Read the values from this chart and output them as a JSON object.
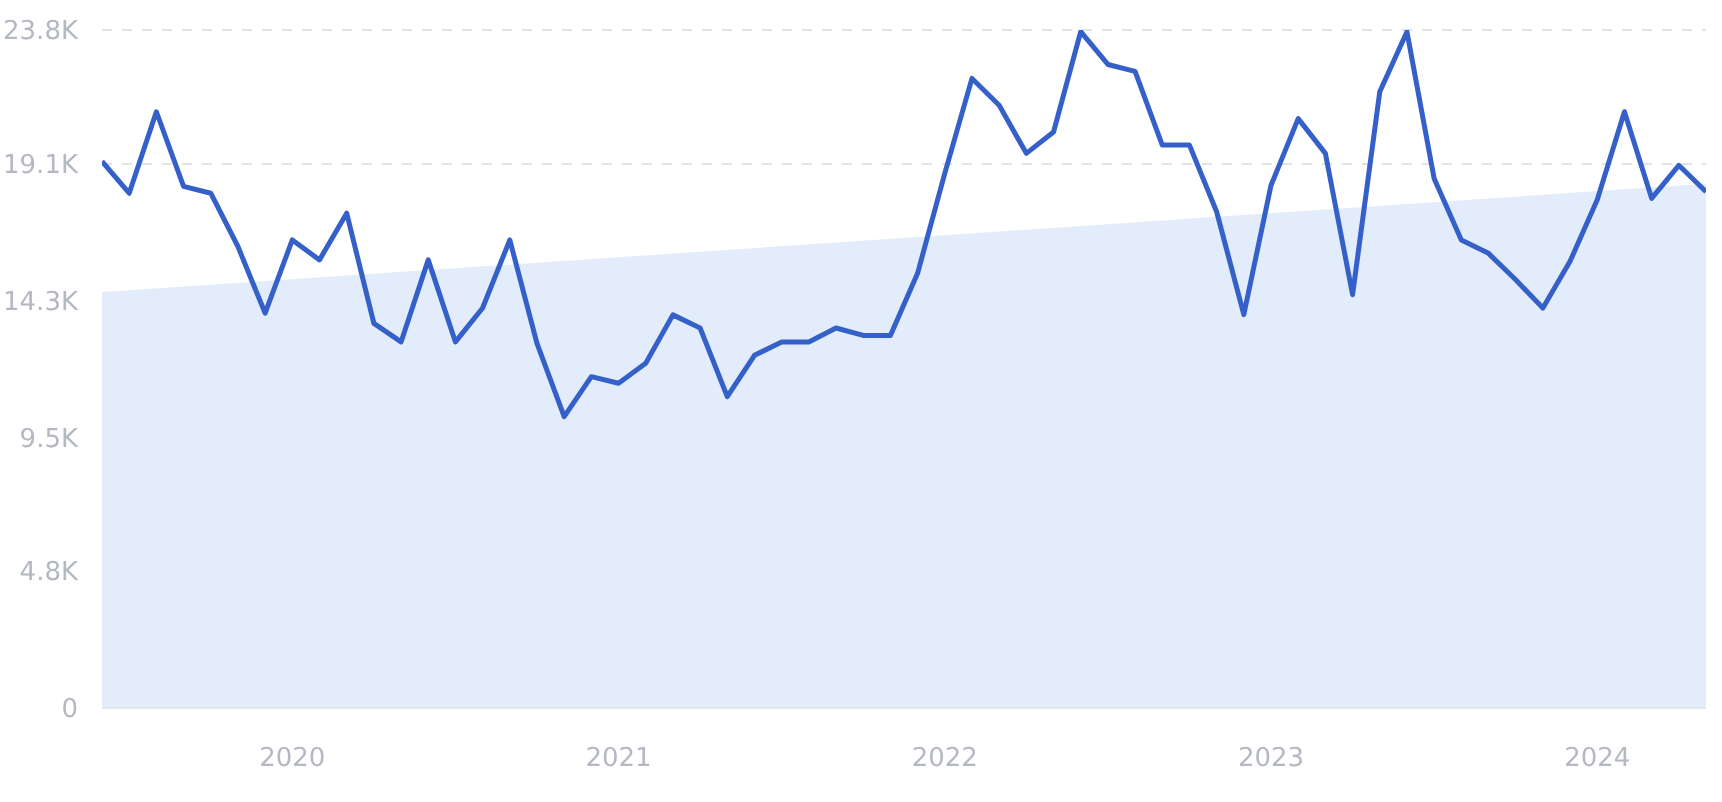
{
  "chart_data": {
    "type": "line",
    "x": [
      "2019-06",
      "2019-07",
      "2019-08",
      "2019-09",
      "2019-10",
      "2019-11",
      "2019-12",
      "2020-01",
      "2020-02",
      "2020-03",
      "2020-04",
      "2020-05",
      "2020-06",
      "2020-07",
      "2020-08",
      "2020-09",
      "2020-10",
      "2020-11",
      "2020-12",
      "2021-01",
      "2021-02",
      "2021-03",
      "2021-04",
      "2021-05",
      "2021-06",
      "2021-07",
      "2021-08",
      "2021-09",
      "2021-10",
      "2021-11",
      "2021-12",
      "2022-01",
      "2022-02",
      "2022-03",
      "2022-04",
      "2022-05",
      "2022-06",
      "2022-07",
      "2022-08",
      "2022-09",
      "2022-10",
      "2022-11",
      "2022-12",
      "2023-01",
      "2023-02",
      "2023-03",
      "2023-04",
      "2023-05",
      "2023-06",
      "2023-07",
      "2023-08",
      "2023-09",
      "2023-10",
      "2023-11",
      "2023-12",
      "2024-01",
      "2024-02",
      "2024-03",
      "2024-04",
      "2024-05"
    ],
    "series": [
      {
        "type": "area",
        "color": "#e2ecfb",
        "x": [
          "2019-06",
          "2024-05"
        ],
        "values": [
          14600,
          18400
        ]
      },
      {
        "color": "#3560c9",
        "values": [
          19190,
          18070,
          20930,
          18310,
          18070,
          16200,
          13860,
          16430,
          15730,
          17370,
          13500,
          12850,
          15730,
          12850,
          14040,
          16430,
          12800,
          10230,
          11630,
          11400,
          12100,
          13800,
          13340,
          10930,
          12380,
          12850,
          12850,
          13340,
          13080,
          13080,
          15260,
          18770,
          22100,
          21160,
          19470,
          20220,
          23740,
          22590,
          22350,
          19760,
          19760,
          17420,
          13810,
          18350,
          20690,
          19470,
          14510,
          21630,
          23740,
          18590,
          16430,
          15960,
          15030,
          14040,
          15680,
          17840,
          20930,
          17890,
          19050,
          18120
        ]
      }
    ],
    "xlim": [
      "2019-06",
      "2024-05"
    ],
    "xticks": [
      {
        "value": "2020-01",
        "label": "2020"
      },
      {
        "value": "2021-01",
        "label": "2021"
      },
      {
        "value": "2022-01",
        "label": "2022"
      },
      {
        "value": "2023-01",
        "label": "2023"
      },
      {
        "value": "2024-01",
        "label": "2024"
      }
    ],
    "ylim": [
      0,
      23800
    ],
    "yticks": [
      {
        "value": 0,
        "label": "0"
      },
      {
        "value": 4800,
        "label": "4.8K"
      },
      {
        "value": 9500,
        "label": "9.5K"
      },
      {
        "value": 14300,
        "label": "14.3K"
      },
      {
        "value": 19100,
        "label": "19.1K"
      },
      {
        "value": 23800,
        "label": "23.8K"
      }
    ],
    "grid": "y",
    "legend": false,
    "marker": "none",
    "line_style": "solid"
  }
}
